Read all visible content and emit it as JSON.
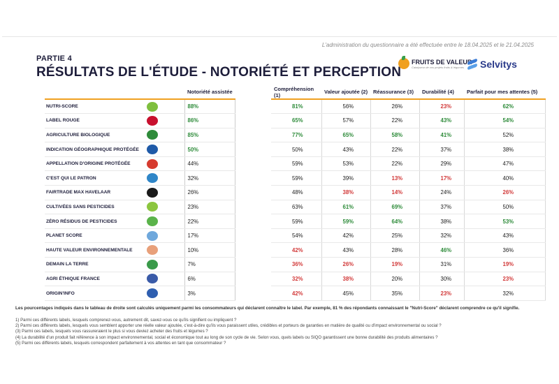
{
  "admin_note": "L'administration du questionnaire a été effectuée entre le 18.04.2025 et le 21.04.2025",
  "partie": "PARTIE 4",
  "title": "RÉSULTATS DE L'ÉTUDE - NOTORIÉTÉ ET PERCEPTION",
  "logos": {
    "fruits_de_valeur": "FRUITS DE VALEUR",
    "fruits_de_valeur_tagline": "Catalyseur de vos projets fruits & légumes",
    "selvitys": "Selvitys"
  },
  "colors": {
    "accent": "#f0a020",
    "positive": "#2e8b3a",
    "negative": "#d23a3a",
    "title": "#1d1d3a"
  },
  "left_table": {
    "header": "Notoriété assistée",
    "rows": [
      {
        "label": "NUTRI-SCORE",
        "icon": "nutriscore-icon",
        "color": "#7fbf3f",
        "value": "88%",
        "hi": true
      },
      {
        "label": "LABEL ROUGE",
        "icon": "label-rouge-icon",
        "color": "#c8102e",
        "value": "86%",
        "hi": true
      },
      {
        "label": "AGRICULTURE BIOLOGIQUE",
        "icon": "ab-icon",
        "color": "#2e8b3a",
        "value": "85%",
        "hi": true
      },
      {
        "label": "INDICATION GÉOGRAPHIQUE PROTÉGÉE",
        "icon": "igp-icon",
        "color": "#1f5aa8",
        "value": "50%",
        "hi": true
      },
      {
        "label": "APPELLATION D'ORIGINE PROTÉGÉE",
        "icon": "aop-icon",
        "color": "#d63b2f",
        "value": "44%",
        "hi": false
      },
      {
        "label": "C'EST QUI LE PATRON",
        "icon": "cqlp-icon",
        "color": "#2f86c8",
        "value": "32%",
        "hi": false
      },
      {
        "label": "FAIRTRADE MAX HAVELAAR",
        "icon": "fairtrade-icon",
        "color": "#1a1a1a",
        "value": "26%",
        "hi": false
      },
      {
        "label": "CULTIVÉES SANS PESTICIDES",
        "icon": "sans-pesticides-icon",
        "color": "#8cc63f",
        "value": "23%",
        "hi": false
      },
      {
        "label": "ZÉRO RÉSIDUS DE PESTICIDES",
        "icon": "zero-residus-icon",
        "color": "#5ab34a",
        "value": "22%",
        "hi": false
      },
      {
        "label": "PLANET SCORE",
        "icon": "planet-score-icon",
        "color": "#6fa8dc",
        "value": "17%",
        "hi": false
      },
      {
        "label": "HAUTE VALEUR ENVIRONNEMENTALE",
        "icon": "hve-icon",
        "color": "#e8a07a",
        "value": "10%",
        "hi": false
      },
      {
        "label": "DEMAIN LA TERRE",
        "icon": "demain-la-terre-icon",
        "color": "#3a9a4a",
        "value": "7%",
        "hi": false
      },
      {
        "label": "AGRI ÉTHIQUE FRANCE",
        "icon": "agri-ethique-icon",
        "color": "#3a5ba8",
        "value": "6%",
        "hi": false
      },
      {
        "label": "ORIGIN'INFO",
        "icon": "origininfo-icon",
        "color": "#2f5fb0",
        "value": "3%",
        "hi": false
      }
    ]
  },
  "right_table": {
    "headers": [
      "Compréhension (1)",
      "Valeur ajoutée (2)",
      "Réassurance (3)",
      "Durabilité (4)",
      "Parfait pour mes attentes (5)"
    ],
    "rows": [
      [
        [
          "81%",
          "g"
        ],
        [
          "56%",
          ""
        ],
        [
          "26%",
          ""
        ],
        [
          "23%",
          "r"
        ],
        [
          "62%",
          "g"
        ]
      ],
      [
        [
          "65%",
          "g"
        ],
        [
          "57%",
          ""
        ],
        [
          "22%",
          ""
        ],
        [
          "43%",
          "g"
        ],
        [
          "54%",
          "g"
        ]
      ],
      [
        [
          "77%",
          "g"
        ],
        [
          "65%",
          "g"
        ],
        [
          "58%",
          "g"
        ],
        [
          "41%",
          "g"
        ],
        [
          "52%",
          ""
        ]
      ],
      [
        [
          "50%",
          ""
        ],
        [
          "43%",
          ""
        ],
        [
          "22%",
          ""
        ],
        [
          "37%",
          ""
        ],
        [
          "38%",
          ""
        ]
      ],
      [
        [
          "59%",
          ""
        ],
        [
          "53%",
          ""
        ],
        [
          "22%",
          ""
        ],
        [
          "29%",
          ""
        ],
        [
          "47%",
          ""
        ]
      ],
      [
        [
          "59%",
          ""
        ],
        [
          "39%",
          ""
        ],
        [
          "13%",
          "r"
        ],
        [
          "17%",
          "r"
        ],
        [
          "40%",
          ""
        ]
      ],
      [
        [
          "48%",
          ""
        ],
        [
          "38%",
          "r"
        ],
        [
          "14%",
          "r"
        ],
        [
          "24%",
          ""
        ],
        [
          "26%",
          "r"
        ]
      ],
      [
        [
          "63%",
          ""
        ],
        [
          "61%",
          "g"
        ],
        [
          "69%",
          "g"
        ],
        [
          "37%",
          ""
        ],
        [
          "50%",
          ""
        ]
      ],
      [
        [
          "59%",
          ""
        ],
        [
          "59%",
          "g"
        ],
        [
          "64%",
          "g"
        ],
        [
          "38%",
          ""
        ],
        [
          "53%",
          "g"
        ]
      ],
      [
        [
          "54%",
          ""
        ],
        [
          "42%",
          ""
        ],
        [
          "25%",
          ""
        ],
        [
          "32%",
          ""
        ],
        [
          "43%",
          ""
        ]
      ],
      [
        [
          "42%",
          "r"
        ],
        [
          "43%",
          ""
        ],
        [
          "28%",
          ""
        ],
        [
          "46%",
          "g"
        ],
        [
          "36%",
          ""
        ]
      ],
      [
        [
          "36%",
          "r"
        ],
        [
          "26%",
          "r"
        ],
        [
          "19%",
          "r"
        ],
        [
          "31%",
          ""
        ],
        [
          "19%",
          "r"
        ]
      ],
      [
        [
          "32%",
          "r"
        ],
        [
          "38%",
          "r"
        ],
        [
          "20%",
          ""
        ],
        [
          "30%",
          ""
        ],
        [
          "23%",
          "r"
        ]
      ],
      [
        [
          "42%",
          "r"
        ],
        [
          "45%",
          ""
        ],
        [
          "35%",
          ""
        ],
        [
          "23%",
          "r"
        ],
        [
          "32%",
          ""
        ]
      ]
    ]
  },
  "footnote_main": "Les pourcentages indiqués dans le tableau de droite sont calculés uniquement parmi les consommateurs qui déclarent connaître le label. Par exemple, 81 % des répondants connaissant le \"Nutri-Score\" déclarent comprendre ce qu'il signifie.",
  "footnotes": [
    "1) Parmi ces différents labels, lesquels comprenez-vous, autrement dit, savez-vous ce qu'ils signifient ou impliquent ?",
    "2) Parmi ces différents labels, lesquels vous semblent apporter une réelle valeur ajoutée, c'est-à-dire qu'ils vous paraissent utiles, crédibles et porteurs de garanties en matière de qualité ou d'impact environnemental ou social ?",
    "(3) Parmi ces labels, lesquels vous rassureraient le plus si vous deviez acheter des fruits et légumes ?",
    "(4) La durabilité d'un produit fait référence à son impact environnemental, social et économique tout au long de son cycle de vie. Selon vous, quels labels ou SIQO garantissent une bonne durabilité des produits alimentaires ?",
    "(5) Parmi ces différents labels, lesquels correspondent parfaitement à vos attentes en tant que consommateur ?"
  ]
}
